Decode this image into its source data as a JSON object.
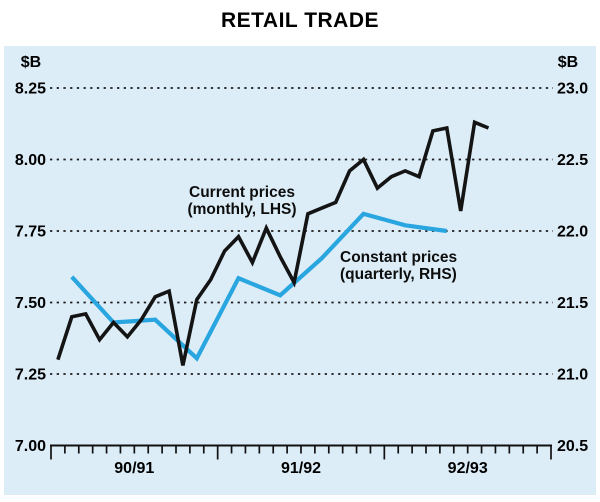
{
  "chart_data": {
    "type": "line",
    "title": "RETAIL TRADE",
    "grid": "dotted-horizontal",
    "left_axis": {
      "unit": "$B",
      "tick_labels": [
        "8.25",
        "8.00",
        "7.75",
        "7.50",
        "7.25",
        "7.00"
      ],
      "range": [
        7.0,
        8.25
      ]
    },
    "right_axis": {
      "unit": "$B",
      "tick_labels": [
        "23.0",
        "22.5",
        "22.0",
        "21.5",
        "21.0",
        "20.5"
      ],
      "range": [
        20.5,
        23.0
      ]
    },
    "x_axis": {
      "labels": [
        "90/91",
        "91/92",
        "92/93"
      ],
      "span_months": 36,
      "minor_ticks": "monthly",
      "major_ticks": "yearly"
    },
    "series": [
      {
        "name": "Current prices (monthly, LHS)",
        "axis": "left",
        "frequency": "monthly",
        "color": "#141414",
        "stroke_width": 3.6,
        "month_index_start": 0,
        "values": [
          7.3,
          7.45,
          7.46,
          7.37,
          7.43,
          7.38,
          7.44,
          7.52,
          7.54,
          7.28,
          7.51,
          7.58,
          7.68,
          7.73,
          7.64,
          7.76,
          7.66,
          7.57,
          7.81,
          7.83,
          7.85,
          7.96,
          8.0,
          7.9,
          7.94,
          7.96,
          7.94,
          8.1,
          8.11,
          7.82,
          8.13,
          8.11
        ]
      },
      {
        "name": "Constant prices (quarterly, RHS)",
        "axis": "right",
        "frequency": "quarterly",
        "color": "#29a6df",
        "stroke_width": 4.2,
        "month_indices": [
          1,
          4,
          7,
          10,
          13,
          16,
          19,
          22,
          25,
          28
        ],
        "values": [
          21.68,
          21.36,
          21.38,
          21.11,
          21.67,
          21.55,
          21.81,
          22.12,
          22.04,
          22.0
        ]
      }
    ],
    "annotations": [
      {
        "line1": "Current prices",
        "line2": "(monthly, LHS)"
      },
      {
        "line1": "Constant prices",
        "line2": "(quarterly, RHS)"
      }
    ],
    "colors": {
      "plot_background": "#dcedf8",
      "axis": "#111111",
      "gridline": "#1c1c1c",
      "text": "#000000"
    }
  }
}
